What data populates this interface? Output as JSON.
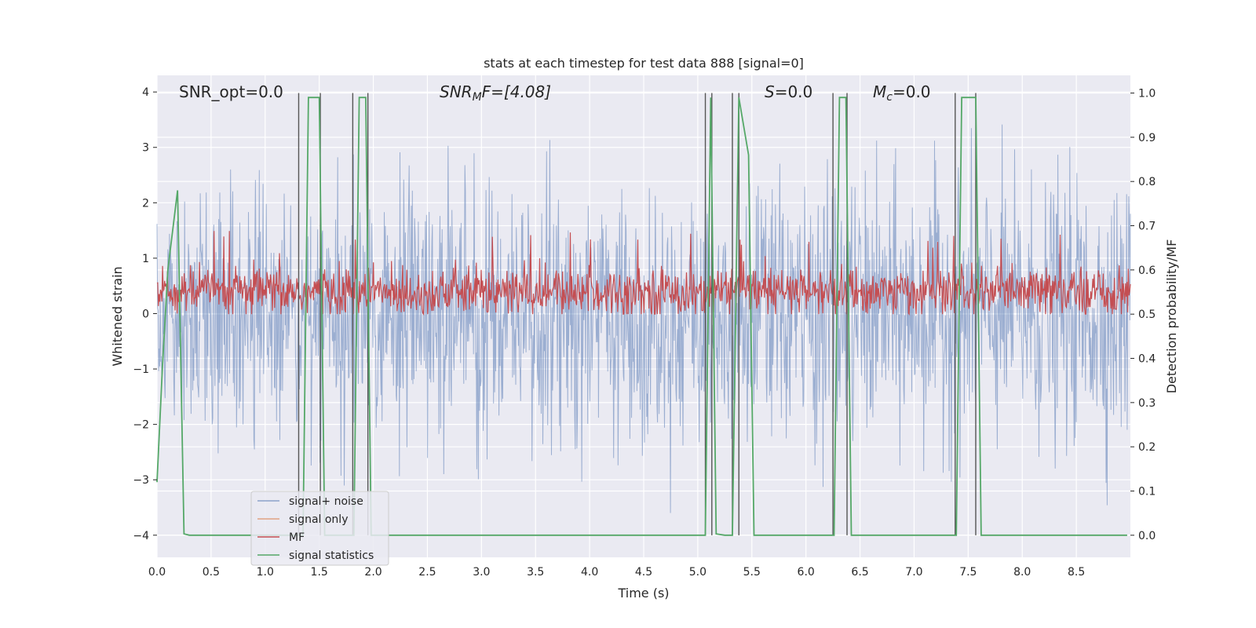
{
  "chart_data": {
    "type": "line",
    "title": "stats at each timestep for test data 888 [signal=0]",
    "xlabel": "Time (s)",
    "ylabel": "Whitened strain",
    "y2label": "Detection probability/MF",
    "xlim": [
      0.0,
      9.0
    ],
    "ylim": [
      -4.4,
      4.3
    ],
    "y2lim": [
      -0.05,
      1.04
    ],
    "x_ticks": [
      "0.0",
      "0.5",
      "1.0",
      "1.5",
      "2.0",
      "2.5",
      "3.0",
      "3.5",
      "4.0",
      "4.5",
      "5.0",
      "5.5",
      "6.0",
      "6.5",
      "7.0",
      "7.5",
      "8.0",
      "8.5"
    ],
    "y_ticks": [
      "−4",
      "−3",
      "−2",
      "−1",
      "0",
      "1",
      "2",
      "3",
      "4"
    ],
    "y2_ticks": [
      "0.0",
      "0.1",
      "0.2",
      "0.3",
      "0.4",
      "0.5",
      "0.6",
      "0.7",
      "0.8",
      "0.9",
      "1.0"
    ],
    "grid": true,
    "legend_position": "lower-left",
    "colors": {
      "noise": "#4c72b0",
      "signal_only": "#dd8452",
      "mf": "#c44e52",
      "stats": "#55a868",
      "vlines": "#555555",
      "background": "#eaeaf2",
      "grid": "#ffffff"
    },
    "annotations": {
      "snr_opt": "SNR_opt=0.0",
      "snr_mf_base": "SNR",
      "snr_mf_sub": "M",
      "snr_mf_rest": "F=[4.08]",
      "s_italic": "S",
      "s_rest": "=0.0",
      "mc_italic": "M",
      "mc_sub": "c",
      "mc_rest": "=0.0"
    },
    "series": [
      {
        "name": "signal+ noise",
        "axis": "left",
        "style": "dense noise, amplitude about ±2 to ±3.5, mean 0"
      },
      {
        "name": "signal only",
        "axis": "left",
        "values": []
      },
      {
        "name": "MF",
        "axis": "right",
        "style": "dense band",
        "mean": 0.55,
        "range": [
          0.5,
          0.66
        ]
      },
      {
        "name": "signal statistics",
        "axis": "right",
        "x": [
          0.0,
          0.05,
          0.1,
          0.19,
          0.25,
          0.3,
          1.35,
          1.4,
          1.5,
          1.55,
          1.82,
          1.87,
          1.93,
          1.98,
          5.07,
          5.12,
          5.17,
          5.25,
          5.32,
          5.38,
          5.47,
          5.52,
          6.26,
          6.31,
          6.37,
          6.42,
          7.39,
          7.44,
          7.57,
          7.62,
          8.97
        ],
        "values": [
          0.12,
          0.38,
          0.6,
          0.78,
          0.003,
          0.0,
          0.0,
          0.99,
          0.99,
          0.0,
          0.0,
          0.99,
          0.99,
          0.0,
          0.0,
          0.99,
          0.003,
          0.0,
          0.0,
          0.99,
          0.86,
          0.0,
          0.0,
          0.99,
          0.99,
          0.0,
          0.0,
          0.99,
          0.99,
          0.0,
          0.0
        ]
      }
    ],
    "vlines": [
      1.31,
      1.51,
      1.81,
      1.95,
      5.07,
      5.13,
      5.32,
      5.38,
      6.25,
      6.38,
      7.38,
      7.57
    ],
    "legend": [
      "signal+ noise",
      "signal only",
      "MF",
      "signal statistics"
    ]
  }
}
